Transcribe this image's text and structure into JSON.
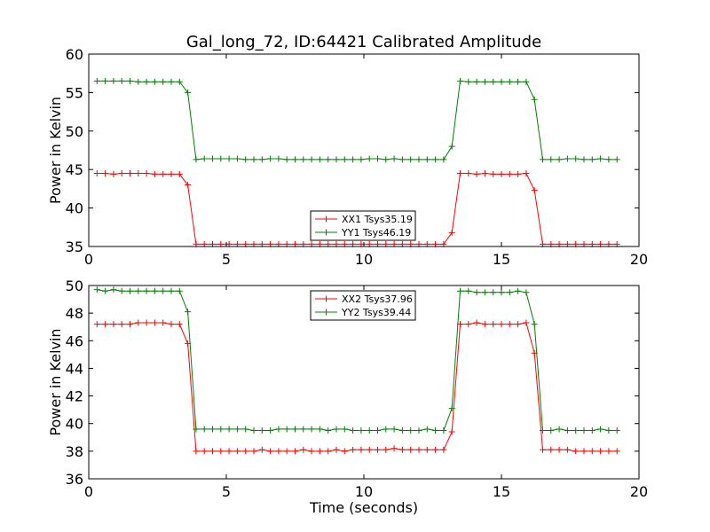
{
  "title": "Gal_long_72, ID:64421 Calibrated Amplitude",
  "xlabel": "Time (seconds)",
  "chart_data": [
    {
      "type": "line",
      "ylabel": "Power in Kelvin",
      "xlim": [
        0,
        20
      ],
      "ylim": [
        35,
        60
      ],
      "xticks": [
        0,
        5,
        10,
        15,
        20
      ],
      "yticks": [
        35,
        40,
        45,
        50,
        55,
        60
      ],
      "legend_position": "lower-center",
      "series": [
        {
          "name": "XX1 Tsys35.19",
          "color": "#ff0000",
          "x": [
            0.3,
            0.6,
            0.9,
            1.2,
            1.5,
            1.8,
            2.1,
            2.4,
            2.7,
            3.0,
            3.3,
            3.6,
            3.9,
            4.2,
            4.5,
            4.8,
            5.1,
            5.4,
            5.7,
            6.0,
            6.3,
            6.6,
            6.9,
            7.2,
            7.5,
            7.8,
            8.1,
            8.4,
            8.7,
            9.0,
            9.3,
            9.6,
            9.9,
            10.2,
            10.5,
            10.8,
            11.1,
            11.4,
            11.7,
            12.0,
            12.3,
            12.6,
            12.9,
            13.2,
            13.5,
            13.8,
            14.1,
            14.4,
            14.7,
            15.0,
            15.3,
            15.6,
            15.9,
            16.2,
            16.5,
            16.8,
            17.1,
            17.4,
            17.7,
            18.0,
            18.3,
            18.6,
            18.9,
            19.2
          ],
          "y": [
            44.5,
            44.5,
            44.4,
            44.5,
            44.5,
            44.5,
            44.5,
            44.4,
            44.4,
            44.4,
            44.4,
            43.0,
            35.3,
            35.3,
            35.3,
            35.3,
            35.3,
            35.3,
            35.3,
            35.3,
            35.3,
            35.3,
            35.3,
            35.3,
            35.3,
            35.3,
            35.3,
            35.3,
            35.3,
            35.3,
            35.3,
            35.3,
            35.3,
            35.3,
            35.3,
            35.3,
            35.3,
            35.3,
            35.3,
            35.3,
            35.3,
            35.3,
            35.3,
            36.8,
            44.5,
            44.5,
            44.4,
            44.5,
            44.4,
            44.4,
            44.4,
            44.4,
            44.5,
            42.3,
            35.3,
            35.3,
            35.3,
            35.3,
            35.3,
            35.3,
            35.3,
            35.3,
            35.3,
            35.3
          ]
        },
        {
          "name": "YY1 Tsys46.19",
          "color": "#008000",
          "x": [
            0.3,
            0.6,
            0.9,
            1.2,
            1.5,
            1.8,
            2.1,
            2.4,
            2.7,
            3.0,
            3.3,
            3.6,
            3.9,
            4.2,
            4.5,
            4.8,
            5.1,
            5.4,
            5.7,
            6.0,
            6.3,
            6.6,
            6.9,
            7.2,
            7.5,
            7.8,
            8.1,
            8.4,
            8.7,
            9.0,
            9.3,
            9.6,
            9.9,
            10.2,
            10.5,
            10.8,
            11.1,
            11.4,
            11.7,
            12.0,
            12.3,
            12.6,
            12.9,
            13.2,
            13.5,
            13.8,
            14.1,
            14.4,
            14.7,
            15.0,
            15.3,
            15.6,
            15.9,
            16.2,
            16.5,
            16.8,
            17.1,
            17.4,
            17.7,
            18.0,
            18.3,
            18.6,
            18.9,
            19.2
          ],
          "y": [
            56.5,
            56.5,
            56.5,
            56.5,
            56.5,
            56.4,
            56.4,
            56.4,
            56.4,
            56.4,
            56.4,
            55.0,
            46.3,
            46.4,
            46.4,
            46.4,
            46.4,
            46.4,
            46.3,
            46.3,
            46.3,
            46.4,
            46.4,
            46.3,
            46.3,
            46.3,
            46.3,
            46.3,
            46.3,
            46.3,
            46.3,
            46.3,
            46.3,
            46.4,
            46.4,
            46.3,
            46.4,
            46.3,
            46.3,
            46.3,
            46.3,
            46.3,
            46.3,
            48.0,
            56.5,
            56.4,
            56.4,
            56.4,
            56.4,
            56.4,
            56.4,
            56.4,
            56.4,
            54.1,
            46.3,
            46.3,
            46.3,
            46.4,
            46.4,
            46.3,
            46.3,
            46.4,
            46.3,
            46.3
          ]
        }
      ]
    },
    {
      "type": "line",
      "ylabel": "Power in Kelvin",
      "xlim": [
        0,
        20
      ],
      "ylim": [
        36,
        50
      ],
      "xticks": [
        0,
        5,
        10,
        15,
        20
      ],
      "yticks": [
        36,
        38,
        40,
        42,
        44,
        46,
        48,
        50
      ],
      "legend_position": "upper-center",
      "series": [
        {
          "name": "XX2 Tsys37.96",
          "color": "#ff0000",
          "x": [
            0.3,
            0.6,
            0.9,
            1.2,
            1.5,
            1.8,
            2.1,
            2.4,
            2.7,
            3.0,
            3.3,
            3.6,
            3.9,
            4.2,
            4.5,
            4.8,
            5.1,
            5.4,
            5.7,
            6.0,
            6.3,
            6.6,
            6.9,
            7.2,
            7.5,
            7.8,
            8.1,
            8.4,
            8.7,
            9.0,
            9.3,
            9.6,
            9.9,
            10.2,
            10.5,
            10.8,
            11.1,
            11.4,
            11.7,
            12.0,
            12.3,
            12.6,
            12.9,
            13.2,
            13.5,
            13.8,
            14.1,
            14.4,
            14.7,
            15.0,
            15.3,
            15.6,
            15.9,
            16.2,
            16.5,
            16.8,
            17.1,
            17.4,
            17.7,
            18.0,
            18.3,
            18.6,
            18.9,
            19.2
          ],
          "y": [
            47.2,
            47.2,
            47.2,
            47.2,
            47.2,
            47.3,
            47.3,
            47.3,
            47.3,
            47.2,
            47.2,
            45.8,
            38.0,
            38.0,
            38.0,
            38.0,
            38.0,
            38.0,
            38.0,
            38.0,
            38.1,
            38.0,
            38.0,
            38.0,
            38.0,
            38.1,
            38.0,
            38.0,
            38.0,
            38.1,
            38.0,
            38.1,
            38.1,
            38.1,
            38.1,
            38.1,
            38.2,
            38.1,
            38.1,
            38.1,
            38.1,
            38.1,
            38.1,
            39.4,
            47.2,
            47.2,
            47.3,
            47.2,
            47.2,
            47.2,
            47.2,
            47.2,
            47.3,
            45.1,
            38.1,
            38.1,
            38.1,
            38.1,
            38.0,
            38.0,
            38.0,
            38.0,
            38.0,
            38.0
          ]
        },
        {
          "name": "YY2 Tsys39.44",
          "color": "#008000",
          "x": [
            0.3,
            0.6,
            0.9,
            1.2,
            1.5,
            1.8,
            2.1,
            2.4,
            2.7,
            3.0,
            3.3,
            3.6,
            3.9,
            4.2,
            4.5,
            4.8,
            5.1,
            5.4,
            5.7,
            6.0,
            6.3,
            6.6,
            6.9,
            7.2,
            7.5,
            7.8,
            8.1,
            8.4,
            8.7,
            9.0,
            9.3,
            9.6,
            9.9,
            10.2,
            10.5,
            10.8,
            11.1,
            11.4,
            11.7,
            12.0,
            12.3,
            12.6,
            12.9,
            13.2,
            13.5,
            13.8,
            14.1,
            14.4,
            14.7,
            15.0,
            15.3,
            15.6,
            15.9,
            16.2,
            16.5,
            16.8,
            17.1,
            17.4,
            17.7,
            18.0,
            18.3,
            18.6,
            18.9,
            19.2
          ],
          "y": [
            49.7,
            49.6,
            49.7,
            49.6,
            49.6,
            49.6,
            49.6,
            49.6,
            49.6,
            49.6,
            49.6,
            48.1,
            39.6,
            39.6,
            39.6,
            39.6,
            39.6,
            39.6,
            39.6,
            39.5,
            39.5,
            39.5,
            39.6,
            39.6,
            39.6,
            39.6,
            39.6,
            39.6,
            39.5,
            39.6,
            39.6,
            39.5,
            39.5,
            39.5,
            39.5,
            39.6,
            39.6,
            39.5,
            39.5,
            39.5,
            39.6,
            39.5,
            39.5,
            41.1,
            49.6,
            49.6,
            49.5,
            49.5,
            49.5,
            49.5,
            49.5,
            49.6,
            49.5,
            47.2,
            39.5,
            39.5,
            39.6,
            39.5,
            39.5,
            39.5,
            39.5,
            39.6,
            39.5,
            39.5
          ]
        }
      ]
    }
  ]
}
